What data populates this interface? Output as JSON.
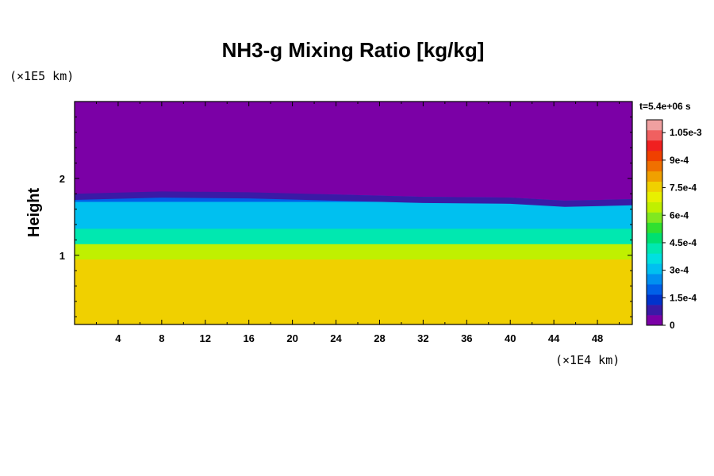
{
  "chart_data": {
    "type": "heatmap",
    "title": "NH3-g Mixing Ratio [kg/kg]",
    "xlabel": "",
    "ylabel": "Height",
    "x_unit": "(×1E4 km)",
    "y_unit": "(×1E5 km)",
    "time_label": "t=5.4e+06 s",
    "x_ticks": [
      4,
      8,
      12,
      16,
      20,
      24,
      28,
      32,
      36,
      40,
      44,
      48
    ],
    "x_tick_labels": [
      "4",
      "8",
      "12",
      "16",
      "20",
      "24",
      "28",
      "32",
      "36",
      "40",
      "44",
      "48"
    ],
    "y_ticks": [
      1,
      2
    ],
    "y_tick_labels": [
      "1",
      "2"
    ],
    "xlim": [
      0,
      51.2
    ],
    "ylim": [
      0.1,
      3.0
    ],
    "colorbar": {
      "levels": [
        0,
        0.00015,
        0.0003,
        0.00045,
        0.0006,
        0.00075,
        0.0009,
        0.00105,
        0.00112
      ],
      "labels": [
        "0",
        "1.5e-4",
        "3e-4",
        "4.5e-4",
        "6e-4",
        "7.5e-4",
        "9e-4",
        "1.05e-3"
      ],
      "label_values": [
        0,
        0.00015,
        0.0003,
        0.00045,
        0.0006,
        0.00075,
        0.0009,
        0.00105
      ],
      "colors": [
        "#7b00a6",
        "#3a1aa6",
        "#0033cc",
        "#0060e8",
        "#0090f0",
        "#00c0f0",
        "#00e0e0",
        "#00e8b0",
        "#00e070",
        "#30e030",
        "#80e820",
        "#c0f000",
        "#e8f000",
        "#f0d000",
        "#f0a000",
        "#f07000",
        "#f04000",
        "#f02020",
        "#f06060",
        "#f0a0a0"
      ]
    },
    "vertical_profile": [
      {
        "height": 0.1,
        "value": 0.00078
      },
      {
        "height": 0.6,
        "value": 0.00077
      },
      {
        "height": 0.95,
        "value": 0.00066
      },
      {
        "height": 1.15,
        "value": 0.0004
      },
      {
        "height": 1.35,
        "value": 0.00031
      },
      {
        "height": 1.7,
        "value": 0.00022
      },
      {
        "height": 1.8,
        "value": 5e-05
      },
      {
        "height": 3.0,
        "value": 0
      }
    ],
    "cloud_top_height": [
      {
        "x": 0,
        "height": 1.8
      },
      {
        "x": 8,
        "height": 1.83
      },
      {
        "x": 16,
        "height": 1.82
      },
      {
        "x": 24,
        "height": 1.79
      },
      {
        "x": 32,
        "height": 1.76
      },
      {
        "x": 40,
        "height": 1.75
      },
      {
        "x": 45,
        "height": 1.71
      },
      {
        "x": 51.2,
        "height": 1.73
      }
    ]
  }
}
